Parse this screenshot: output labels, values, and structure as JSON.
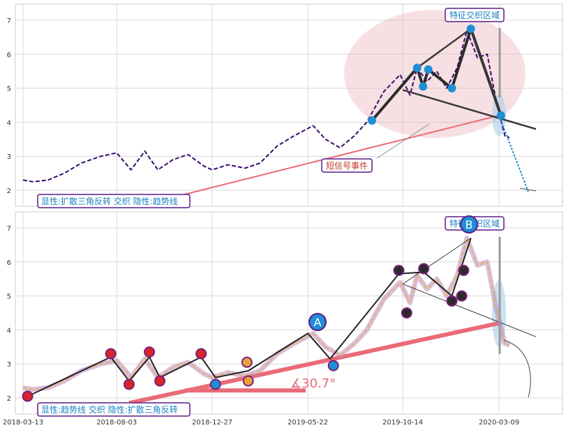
{
  "chart_data": [
    {
      "type": "line",
      "panel": "top",
      "ylim": [
        1.5,
        7.45
      ],
      "yticks": [
        "2",
        "3",
        "4",
        "5",
        "6",
        "7"
      ],
      "grid": true,
      "colors": {
        "price": "#3a0a6e",
        "trend": "#e96b78",
        "pattern": "#2b2b2b",
        "points": "#1f8fd6",
        "zone": "#e7a6b1"
      },
      "series": [
        {
          "x": [
            "2018-03-13",
            "2018-03-28",
            "2018-04-20",
            "2018-05-15",
            "2018-06-10",
            "2018-07-10",
            "2018-08-03",
            "2018-08-25",
            "2018-09-15",
            "2018-10-05",
            "2018-10-28",
            "2018-11-20",
            "2018-12-15",
            "2018-12-27",
            "2019-01-20",
            "2019-02-15",
            "2019-03-10",
            "2019-04-05",
            "2019-05-01",
            "2019-05-30",
            "2019-06-18",
            "2019-07-10",
            "2019-08-01",
            "2019-08-20",
            "2019-09-15",
            "2019-10-10",
            "2019-10-25",
            "2019-11-05",
            "2019-11-20",
            "2019-12-05",
            "2019-12-20",
            "2020-01-05",
            "2020-01-20",
            "2020-02-05",
            "2020-02-20",
            "2020-03-05",
            "2020-03-18",
            "2020-03-25"
          ],
          "values": [
            2.3,
            2.25,
            2.3,
            2.5,
            2.8,
            3.0,
            3.1,
            2.6,
            3.15,
            2.6,
            2.9,
            3.05,
            2.7,
            2.6,
            2.75,
            2.65,
            2.8,
            3.3,
            3.6,
            3.9,
            3.5,
            3.25,
            3.6,
            4.0,
            4.9,
            5.4,
            4.8,
            5.6,
            5.2,
            5.5,
            5.0,
            5.6,
            6.7,
            5.9,
            6.0,
            4.6,
            3.6,
            3.55
          ]
        }
      ],
      "pattern_points": [
        {
          "x": "2019-08-28",
          "y": 4.05
        },
        {
          "x": "2019-11-05",
          "y": 5.6
        },
        {
          "x": "2019-11-14",
          "y": 5.05
        },
        {
          "x": "2019-11-22",
          "y": 5.55
        },
        {
          "x": "2019-12-28",
          "y": 5.0
        },
        {
          "x": "2020-01-26",
          "y": 6.75
        },
        {
          "x": "2020-03-12",
          "y": 4.2
        }
      ],
      "annotations": [
        "短信号事件",
        "特征交织区域",
        "显性:扩散三角反转 交织 隐性:趋势线"
      ]
    },
    {
      "type": "line",
      "panel": "bottom",
      "ylim": [
        1.5,
        7.45
      ],
      "yticks": [
        "2",
        "3",
        "4",
        "5",
        "6",
        "7"
      ],
      "xticks": [
        "2018-03-13",
        "2018-08-03",
        "2018-12-27",
        "2019-05-22",
        "2019-10-14",
        "2020-03-09"
      ],
      "grid": true,
      "colors": {
        "price": "#e8b34a",
        "trend": "#e96b78",
        "pattern": "#2b2b2b",
        "band": "#b98bc4"
      },
      "series": [
        {
          "x": [
            "2018-03-13",
            "2018-03-28",
            "2018-04-20",
            "2018-05-15",
            "2018-06-10",
            "2018-07-10",
            "2018-08-03",
            "2018-08-25",
            "2018-09-15",
            "2018-10-05",
            "2018-10-28",
            "2018-11-20",
            "2018-12-15",
            "2018-12-27",
            "2019-01-20",
            "2019-02-15",
            "2019-03-10",
            "2019-04-05",
            "2019-05-01",
            "2019-05-30",
            "2019-06-18",
            "2019-07-10",
            "2019-08-01",
            "2019-08-20",
            "2019-09-15",
            "2019-10-10",
            "2019-10-25",
            "2019-11-05",
            "2019-11-20",
            "2019-12-05",
            "2019-12-20",
            "2020-01-05",
            "2020-01-20",
            "2020-02-05",
            "2020-02-20",
            "2020-03-05",
            "2020-03-18",
            "2020-03-25"
          ],
          "values": [
            2.3,
            2.25,
            2.3,
            2.5,
            2.8,
            3.0,
            3.1,
            2.6,
            3.15,
            2.6,
            2.9,
            3.05,
            2.7,
            2.6,
            2.75,
            2.65,
            2.8,
            3.3,
            3.6,
            3.9,
            3.5,
            3.25,
            3.6,
            4.0,
            4.9,
            5.4,
            4.8,
            5.6,
            5.2,
            5.5,
            5.0,
            5.6,
            6.7,
            5.9,
            6.0,
            4.6,
            3.6,
            3.55
          ]
        }
      ],
      "markers": [
        {
          "x": "2018-03-20",
          "y": 2.05,
          "color": "#d7262a"
        },
        {
          "x": "2018-07-25",
          "y": 3.3,
          "color": "#d7262a"
        },
        {
          "x": "2018-08-22",
          "y": 2.4,
          "color": "#d7262a"
        },
        {
          "x": "2018-09-22",
          "y": 3.35,
          "color": "#d7262a"
        },
        {
          "x": "2018-10-08",
          "y": 2.5,
          "color": "#d7262a"
        },
        {
          "x": "2018-12-10",
          "y": 3.3,
          "color": "#d7262a"
        },
        {
          "x": "2019-01-01",
          "y": 2.4,
          "color": "#1f8fd6"
        },
        {
          "x": "2019-02-18",
          "y": 3.05,
          "color": "#e8a33a"
        },
        {
          "x": "2019-02-20",
          "y": 2.5,
          "color": "#e8a33a"
        },
        {
          "x": "2019-06-30",
          "y": 2.95,
          "color": "#1f8fd6"
        },
        {
          "x": "2019-10-08",
          "y": 5.75,
          "color": "#2b2b2b"
        },
        {
          "x": "2019-10-20",
          "y": 4.5,
          "color": "#2b2b2b"
        },
        {
          "x": "2019-11-15",
          "y": 5.8,
          "color": "#2b2b2b"
        },
        {
          "x": "2019-12-28",
          "y": 4.85,
          "color": "#2b2b2b"
        },
        {
          "x": "2020-01-12",
          "y": 5.0,
          "color": "#2b2b2b"
        },
        {
          "x": "2020-01-15",
          "y": 5.75,
          "color": "#2b2b2b"
        }
      ],
      "annotations": [
        "∡30.7°",
        "A",
        "B",
        "特征交织区域",
        "显性:趋势线 交织 隐性:扩散三角反转"
      ]
    }
  ]
}
